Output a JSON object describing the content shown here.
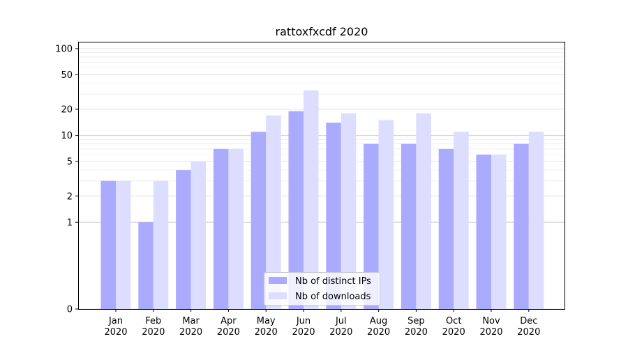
{
  "chart_data": {
    "type": "bar",
    "title": "rattoxfxcdf 2020",
    "xlabel": "",
    "ylabel": "",
    "yscale": "symlog",
    "ylim": [
      0,
      120
    ],
    "yticks": [
      0,
      1,
      2,
      5,
      10,
      20,
      50,
      100
    ],
    "ytick_labels": [
      "0",
      "1",
      "2",
      "5",
      "10",
      "20",
      "50",
      "100"
    ],
    "categories": [
      "Jan\n2020",
      "Feb\n2020",
      "Mar\n2020",
      "Apr\n2020",
      "May\n2020",
      "Jun\n2020",
      "Jul\n2020",
      "Aug\n2020",
      "Sep\n2020",
      "Oct\n2020",
      "Nov\n2020",
      "Dec\n2020"
    ],
    "series": [
      {
        "name": "Nb of distinct IPs",
        "color": "#aaaaff",
        "values": [
          3,
          1,
          4,
          7,
          11,
          19,
          14,
          8,
          8,
          7,
          6,
          8
        ]
      },
      {
        "name": "Nb of downloads",
        "color": "#ddddff",
        "values": [
          3,
          3,
          5,
          7,
          17,
          33,
          18,
          15,
          18,
          11,
          6,
          11
        ]
      }
    ],
    "grid": true,
    "legend": "lower-center"
  }
}
